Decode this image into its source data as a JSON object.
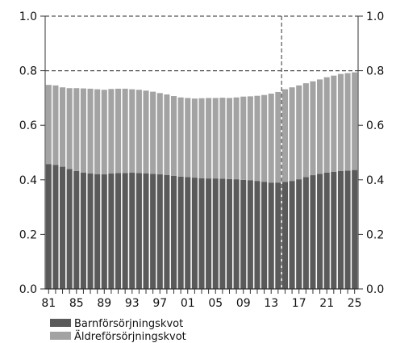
{
  "chart_data": {
    "type": "bar",
    "stacked": true,
    "years": [
      1981,
      1982,
      1983,
      1984,
      1985,
      1986,
      1987,
      1988,
      1989,
      1990,
      1991,
      1992,
      1993,
      1994,
      1995,
      1996,
      1997,
      1998,
      1999,
      2000,
      2001,
      2002,
      2003,
      2004,
      2005,
      2006,
      2007,
      2008,
      2009,
      2010,
      2011,
      2012,
      2013,
      2014,
      2015,
      2016,
      2017,
      2018,
      2019,
      2020,
      2021,
      2022,
      2023,
      2024,
      2025
    ],
    "x_tick_labels": [
      {
        "year": 1981,
        "label": "81"
      },
      {
        "year": 1985,
        "label": "85"
      },
      {
        "year": 1989,
        "label": "89"
      },
      {
        "year": 1993,
        "label": "93"
      },
      {
        "year": 1997,
        "label": "97"
      },
      {
        "year": 2001,
        "label": "01"
      },
      {
        "year": 2005,
        "label": "05"
      },
      {
        "year": 2009,
        "label": "09"
      },
      {
        "year": 2013,
        "label": "13"
      },
      {
        "year": 2017,
        "label": "17"
      },
      {
        "year": 2021,
        "label": "21"
      },
      {
        "year": 2025,
        "label": "25"
      }
    ],
    "series": [
      {
        "name": "Barnförsörjningskvot",
        "color": "#5a5a5a",
        "values": [
          0.458,
          0.455,
          0.448,
          0.44,
          0.432,
          0.426,
          0.423,
          0.421,
          0.42,
          0.423,
          0.425,
          0.425,
          0.426,
          0.425,
          0.424,
          0.422,
          0.42,
          0.418,
          0.415,
          0.412,
          0.41,
          0.408,
          0.406,
          0.405,
          0.405,
          0.404,
          0.403,
          0.402,
          0.4,
          0.398,
          0.396,
          0.393,
          0.39,
          0.39,
          0.392,
          0.396,
          0.402,
          0.41,
          0.417,
          0.422,
          0.426,
          0.429,
          0.432,
          0.434,
          0.436
        ]
      },
      {
        "name": "Äldreförsörjningskvot",
        "color": "#a3a3a3",
        "values": [
          0.29,
          0.291,
          0.291,
          0.296,
          0.304,
          0.309,
          0.311,
          0.311,
          0.31,
          0.31,
          0.309,
          0.309,
          0.306,
          0.305,
          0.303,
          0.301,
          0.298,
          0.295,
          0.292,
          0.29,
          0.29,
          0.29,
          0.293,
          0.295,
          0.295,
          0.297,
          0.297,
          0.3,
          0.305,
          0.308,
          0.312,
          0.318,
          0.326,
          0.332,
          0.34,
          0.343,
          0.344,
          0.344,
          0.344,
          0.346,
          0.35,
          0.353,
          0.356,
          0.357,
          0.358
        ]
      }
    ],
    "y_ticks": [
      0.0,
      0.2,
      0.4,
      0.6,
      0.8,
      1.0
    ],
    "y_tick_labels": [
      "0.0",
      "0.2",
      "0.4",
      "0.6",
      "0.8",
      "1.0"
    ],
    "ylim": [
      0,
      1.0
    ],
    "reference_line_y": 0.8,
    "forecast_start_year": 2015,
    "colors": {
      "axis": "#333333",
      "dashed": "#555555",
      "background": "#ffffff"
    },
    "legend_position": "bottom-left"
  }
}
